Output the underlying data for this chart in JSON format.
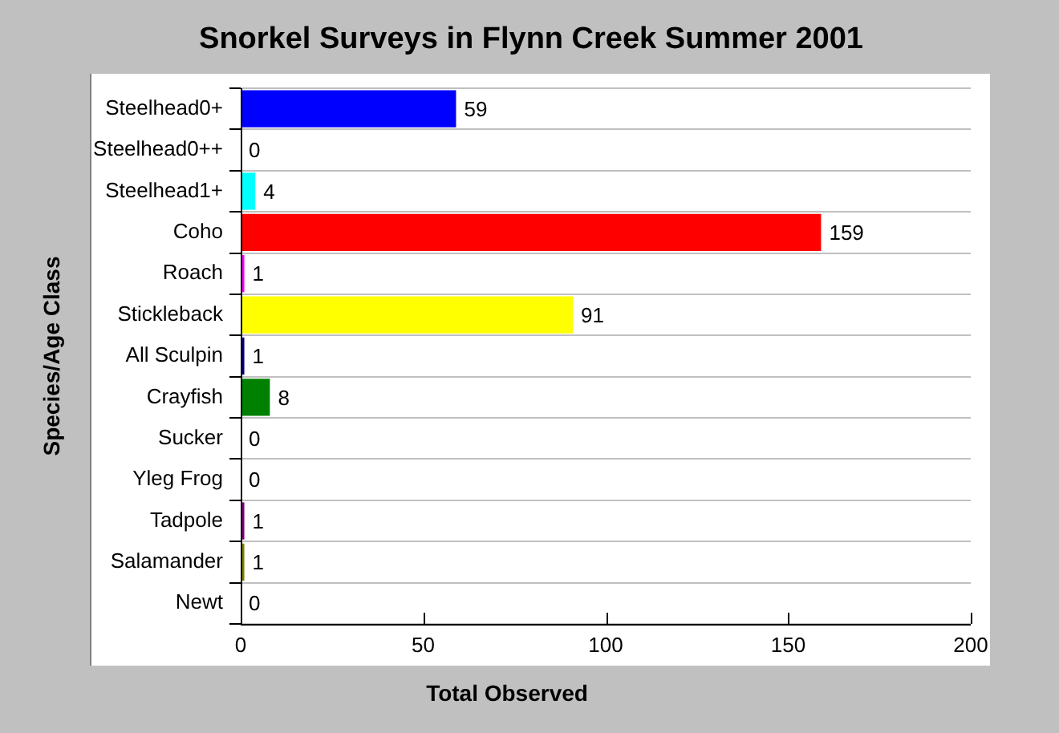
{
  "chart_data": {
    "type": "bar",
    "orientation": "horizontal",
    "title": "Snorkel Surveys in Flynn Creek Summer 2001",
    "xlabel": "Total Observed",
    "ylabel": "Species/Age Class",
    "categories": [
      "Steelhead0+",
      "Steelhead0++",
      "Steelhead1+",
      "Coho",
      "Roach",
      "Stickleback",
      "All Sculpin",
      "Crayfish",
      "Sucker",
      "Yleg Frog",
      "Tadpole",
      "Salamander",
      "Newt"
    ],
    "values": [
      59,
      0,
      4,
      159,
      1,
      91,
      1,
      8,
      0,
      0,
      1,
      1,
      0
    ],
    "colors": [
      "#0000ff",
      "#00ff00",
      "#00ffff",
      "#ff0000",
      "#ff00ff",
      "#ffff00",
      "#000080",
      "#008000",
      "#800000",
      "#008080",
      "#800080",
      "#808000",
      "#808080"
    ],
    "xlim": [
      0,
      200
    ],
    "xticks": [
      0,
      50,
      100,
      150,
      200
    ],
    "grid": "y",
    "data_labels": true
  }
}
